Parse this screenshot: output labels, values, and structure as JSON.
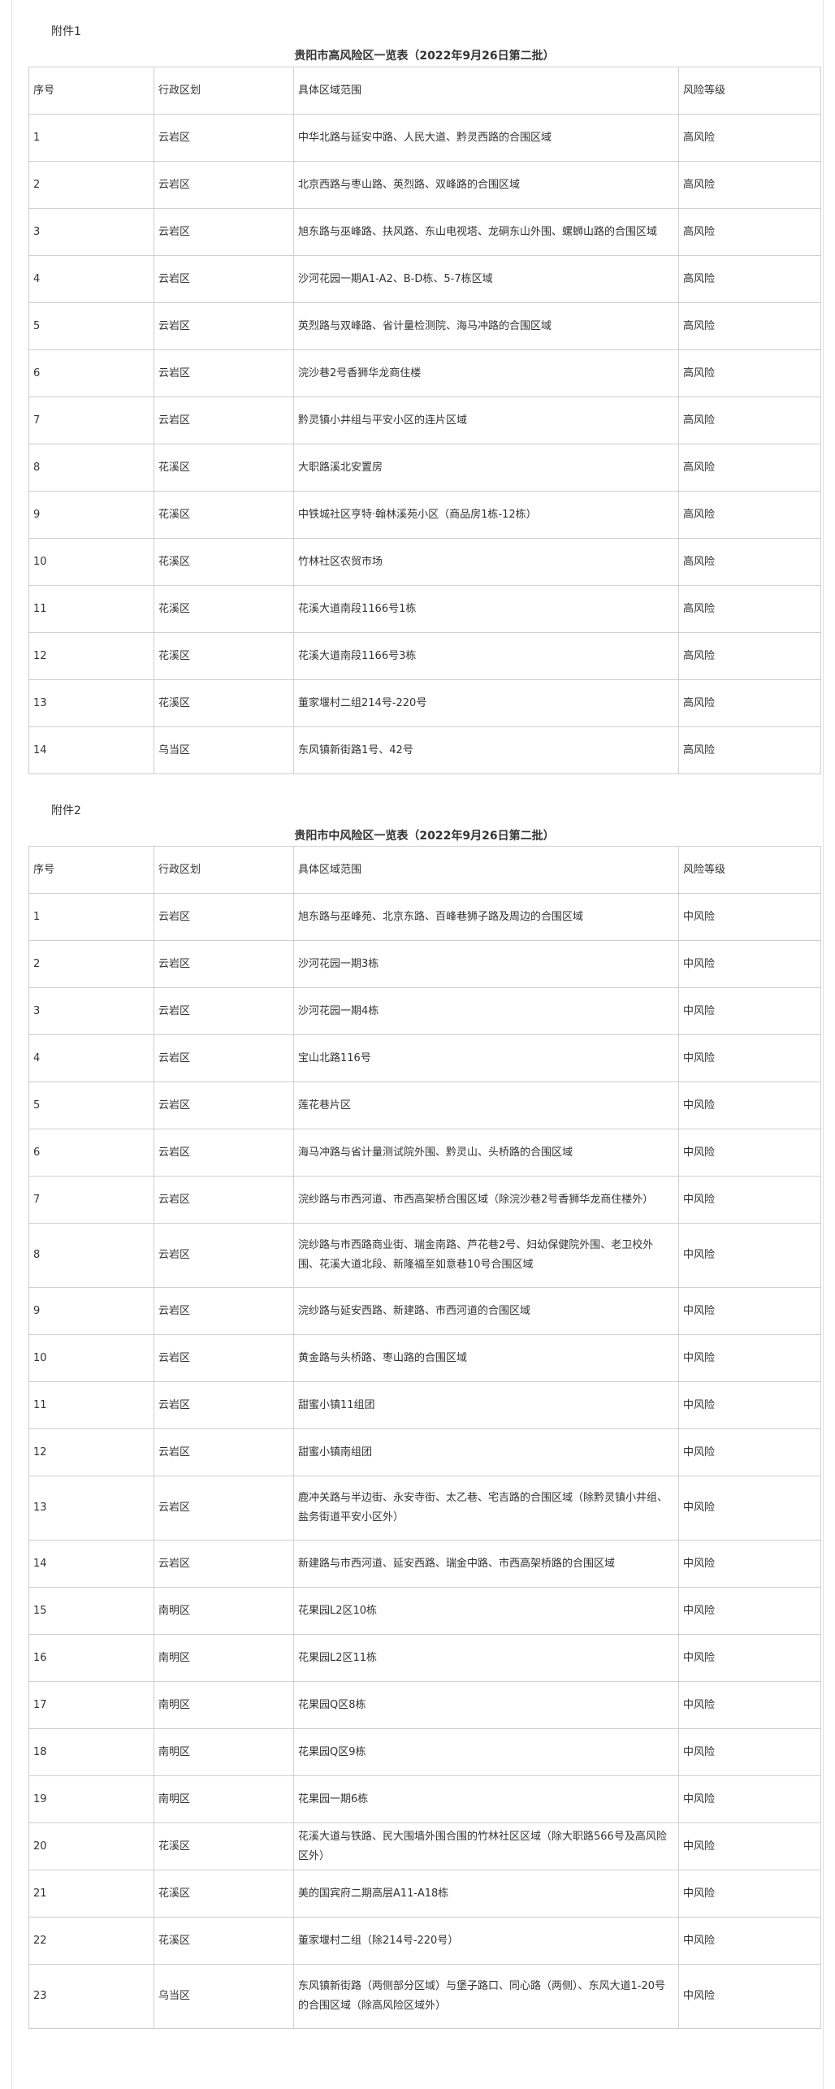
{
  "annex1": {
    "label": "附件1",
    "title": "贵阳市高风险区一览表（2022年9月26日第二批）",
    "headers": [
      "序号",
      "行政区划",
      "具体区域范围",
      "风险等级"
    ],
    "rows": [
      [
        "1",
        "云岩区",
        "中华北路与延安中路、人民大道、黔灵西路的合围区域",
        "高风险"
      ],
      [
        "2",
        "云岩区",
        "北京西路与枣山路、英烈路、双峰路的合围区域",
        "高风险"
      ],
      [
        "3",
        "云岩区",
        "旭东路与巫峰路、扶风路、东山电视塔、龙硐东山外围、螺蛳山路的合围区域",
        "高风险"
      ],
      [
        "4",
        "云岩区",
        "沙河花园一期A1-A2、B-D栋、5-7栋区域",
        "高风险"
      ],
      [
        "5",
        "云岩区",
        "英烈路与双峰路、省计量检测院、海马冲路的合围区域",
        "高风险"
      ],
      [
        "6",
        "云岩区",
        "浣沙巷2号香狮华龙商住楼",
        "高风险"
      ],
      [
        "7",
        "云岩区",
        "黔灵镇小井组与平安小区的连片区域",
        "高风险"
      ],
      [
        "8",
        "花溪区",
        "大职路溪北安置房",
        "高风险"
      ],
      [
        "9",
        "花溪区",
        "中铁城社区亨特·翰林溪苑小区（商品房1栋-12栋）",
        "高风险"
      ],
      [
        "10",
        "花溪区",
        "竹林社区农贸市场",
        "高风险"
      ],
      [
        "11",
        "花溪区",
        "花溪大道南段1166号1栋",
        "高风险"
      ],
      [
        "12",
        "花溪区",
        "花溪大道南段1166号3栋",
        "高风险"
      ],
      [
        "13",
        "花溪区",
        "董家堰村二组214号-220号",
        "高风险"
      ],
      [
        "14",
        "乌当区",
        "东风镇新街路1号、42号",
        "高风险"
      ]
    ]
  },
  "annex2": {
    "label": "附件2",
    "title": "贵阳市中风险区一览表（2022年9月26日第二批）",
    "headers": [
      "序号",
      "行政区划",
      "具体区域范围",
      "风险等级"
    ],
    "rows": [
      [
        "1",
        "云岩区",
        "旭东路与巫峰苑、北京东路、百峰巷狮子路及周边的合围区域",
        "中风险"
      ],
      [
        "2",
        "云岩区",
        "沙河花园一期3栋",
        "中风险"
      ],
      [
        "3",
        "云岩区",
        "沙河花园一期4栋",
        "中风险"
      ],
      [
        "4",
        "云岩区",
        "宝山北路116号",
        "中风险"
      ],
      [
        "5",
        "云岩区",
        "莲花巷片区",
        "中风险"
      ],
      [
        "6",
        "云岩区",
        "海马冲路与省计量测试院外围、黔灵山、头桥路的合围区域",
        "中风险"
      ],
      [
        "7",
        "云岩区",
        "浣纱路与市西河道、市西高架桥合围区域（除浣沙巷2号香狮华龙商住楼外）",
        "中风险"
      ],
      [
        "8",
        "云岩区",
        "浣纱路与市西路商业街、瑞金南路、芦花巷2号、妇幼保健院外围、老卫校外围、花溪大道北段、新隆福至如意巷10号合围区域",
        "中风险"
      ],
      [
        "9",
        "云岩区",
        "浣纱路与延安西路、新建路、市西河道的合围区域",
        "中风险"
      ],
      [
        "10",
        "云岩区",
        "黄金路与头桥路、枣山路的合围区域",
        "中风险"
      ],
      [
        "11",
        "云岩区",
        "甜蜜小镇11组团",
        "中风险"
      ],
      [
        "12",
        "云岩区",
        "甜蜜小镇南组团",
        "中风险"
      ],
      [
        "13",
        "云岩区",
        "鹿冲关路与半边街、永安寺街、太乙巷、宅吉路的合围区域（除黔灵镇小井组、盐务街道平安小区外）",
        "中风险"
      ],
      [
        "14",
        "云岩区",
        "新建路与市西河道、延安西路、瑞金中路、市西高架桥路的合围区域",
        "中风险"
      ],
      [
        "15",
        "南明区",
        "花果园L2区10栋",
        "中风险"
      ],
      [
        "16",
        "南明区",
        "花果园L2区11栋",
        "中风险"
      ],
      [
        "17",
        "南明区",
        "花果园Q区8栋",
        "中风险"
      ],
      [
        "18",
        "南明区",
        "花果园Q区9栋",
        "中风险"
      ],
      [
        "19",
        "南明区",
        "花果园一期6栋",
        "中风险"
      ],
      [
        "20",
        "花溪区",
        "花溪大道与铁路、民大围墙外围合围的竹林社区区域（除大职路566号及高风险区外）",
        "中风险"
      ],
      [
        "21",
        "花溪区",
        "美的国宾府二期高层A11-A18栋",
        "中风险"
      ],
      [
        "22",
        "花溪区",
        "董家堰村二组（除214号-220号）",
        "中风险"
      ],
      [
        "23",
        "乌当区",
        "东风镇新街路（两侧部分区域）与堡子路口、同心路（两侧）、东风大道1-20号的合围区域（除高风险区域外）",
        "中风险"
      ]
    ]
  }
}
